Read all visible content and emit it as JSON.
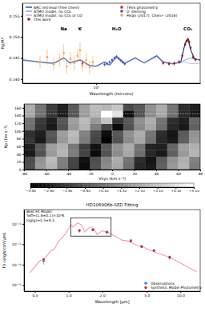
{
  "chart_data": [
    {
      "type": "line",
      "xlabel": "Wavelength (microns)",
      "ylabel": "Rp/R*",
      "log": "x",
      "xlim": [
        0.3,
        5.5
      ],
      "xticks": [
        {
          "value": 1,
          "label": "10⁰"
        }
      ],
      "ylim": [
        0.139,
        0.158
      ],
      "yticks": [
        {
          "value": 0.14,
          "label": "0.140"
        },
        {
          "value": 0.145,
          "label": "0.145"
        },
        {
          "value": 0.15,
          "label": "0.150"
        },
        {
          "value": 0.155,
          "label": "0.155"
        }
      ],
      "legend": "top",
      "annotations": [
        {
          "text": "Na",
          "x": 0.59,
          "y": 0.1515
        },
        {
          "text": "K",
          "x": 0.77,
          "y": 0.1515
        },
        {
          "text": "H₂O",
          "x": 1.4,
          "y": 0.1515
        },
        {
          "text": "CO₂",
          "x": 4.5,
          "y": 0.1515
        }
      ],
      "series": [
        {
          "name": "ARC retrieval (free chem)",
          "type": "line",
          "color": "#1a237e",
          "x": [
            0.3,
            0.4,
            0.5,
            0.59,
            0.65,
            0.77,
            0.9,
            1.0,
            1.15,
            1.25,
            1.4,
            1.6,
            1.9,
            2.2,
            2.7,
            3.0,
            3.5,
            4.0,
            4.3,
            4.5,
            4.7,
            5.0,
            5.5
          ],
          "values": [
            0.1445,
            0.144,
            0.1437,
            0.145,
            0.1438,
            0.1445,
            0.1432,
            0.143,
            0.144,
            0.1433,
            0.1452,
            0.1437,
            0.145,
            0.1438,
            0.1455,
            0.144,
            0.1436,
            0.144,
            0.1485,
            0.1495,
            0.147,
            0.1448,
            0.1445
          ]
        },
        {
          "name": "ATMO model, no CO₂",
          "type": "line",
          "color": "#5b9bd5",
          "x": [
            0.3,
            0.4,
            0.5,
            0.59,
            0.65,
            0.77,
            0.9,
            1.0,
            1.15,
            1.25,
            1.4,
            1.6,
            1.9,
            2.2,
            2.7,
            3.0,
            3.5,
            4.0,
            4.3,
            4.5,
            4.7,
            5.0,
            5.5
          ],
          "values": [
            0.1446,
            0.1441,
            0.1438,
            0.1451,
            0.1439,
            0.1446,
            0.1433,
            0.1431,
            0.1441,
            0.1434,
            0.1453,
            0.1438,
            0.1451,
            0.1439,
            0.1456,
            0.1441,
            0.1437,
            0.1441,
            0.1445,
            0.1448,
            0.145,
            0.1447,
            0.1444
          ]
        },
        {
          "name": "ATMO model, no CO₂ or CO",
          "type": "line",
          "color": "#b9a6d6",
          "x": [
            0.3,
            0.4,
            0.5,
            0.59,
            0.65,
            0.77,
            0.9,
            1.0,
            1.15,
            1.25,
            1.4,
            1.6,
            1.9,
            2.2,
            2.7,
            3.0,
            3.5,
            4.0,
            4.3,
            4.5,
            4.7,
            5.0,
            5.5
          ],
          "values": [
            0.1444,
            0.1439,
            0.1436,
            0.1449,
            0.1437,
            0.1444,
            0.1431,
            0.1429,
            0.1439,
            0.1432,
            0.1451,
            0.1436,
            0.1449,
            0.1437,
            0.1453,
            0.1439,
            0.1435,
            0.1439,
            0.144,
            0.1438,
            0.1437,
            0.1436,
            0.1438
          ]
        },
        {
          "name": "This work",
          "type": "scatter",
          "marker": "circle",
          "color": "#8b1a1a",
          "x": [
            3.0,
            3.3,
            3.6,
            3.9,
            4.1,
            4.3,
            4.4,
            4.5,
            4.6,
            4.7,
            4.9,
            5.1
          ],
          "values": [
            0.1438,
            0.1436,
            0.1437,
            0.1441,
            0.1455,
            0.1482,
            0.149,
            0.1494,
            0.1488,
            0.1474,
            0.1452,
            0.1446
          ],
          "errors": [
            0.0005,
            0.0005,
            0.0005,
            0.0005,
            0.0005,
            0.0005,
            0.0005,
            0.0005,
            0.0005,
            0.0005,
            0.0005,
            0.0005
          ]
        },
        {
          "name": "TESS photometry",
          "type": "scatter",
          "marker": "square",
          "color": "#d62728",
          "x": [
            0.8
          ],
          "values": [
            0.1437
          ],
          "errors": [
            0.0008
          ]
        },
        {
          "name": "D. Deming",
          "type": "scatter",
          "marker": "circle",
          "color": "#3f51b5",
          "x": [
            1.15,
            1.2,
            1.25,
            1.3,
            1.35,
            1.4,
            1.45,
            1.5,
            1.55,
            1.6
          ],
          "values": [
            0.1434,
            0.1436,
            0.144,
            0.1445,
            0.145,
            0.1453,
            0.1449,
            0.1444,
            0.144,
            0.1436
          ],
          "errors": [
            0.0004,
            0.0004,
            0.0004,
            0.0004,
            0.0004,
            0.0004,
            0.0004,
            0.0004,
            0.0004,
            0.0004
          ]
        },
        {
          "name": "Pelan (2017), Chen+ (2018)",
          "type": "scatter",
          "marker": "circle",
          "color": "#f5a34a",
          "x": [
            0.4,
            0.45,
            0.5,
            0.55,
            0.59,
            0.62,
            0.66,
            0.7,
            0.74,
            0.77,
            0.8,
            0.85,
            0.9,
            0.95
          ],
          "values": [
            0.144,
            0.1452,
            0.1435,
            0.1446,
            0.1462,
            0.143,
            0.1448,
            0.1438,
            0.1455,
            0.1468,
            0.1432,
            0.1445,
            0.1428,
            0.144
          ],
          "errors": [
            0.0015,
            0.0018,
            0.0014,
            0.0016,
            0.002,
            0.0017,
            0.0015,
            0.0018,
            0.0016,
            0.002,
            0.0015,
            0.0017,
            0.0016,
            0.0015
          ]
        }
      ]
    },
    {
      "type": "heatmap",
      "xlabel": "Vsys (km s⁻¹)",
      "ylabel": "Kp (km s⁻¹)",
      "xlim": [
        -80,
        80
      ],
      "xticks": [
        -80,
        -60,
        -40,
        -20,
        0,
        20,
        40,
        60,
        80
      ],
      "ylim": [
        0,
        170
      ],
      "yticks": [
        0,
        20,
        40,
        60,
        80,
        100,
        120,
        140,
        160
      ],
      "x_edges": [
        -80,
        -70,
        -60,
        -50,
        -40,
        -30,
        -20,
        -10,
        0,
        10,
        20,
        30,
        40,
        50,
        60,
        70,
        80
      ],
      "y_edges": [
        0,
        17,
        34,
        51,
        68,
        85,
        102,
        119,
        136,
        153,
        170
      ],
      "z": [
        [
          -1.0,
          1.5,
          2.5,
          0.5,
          -1.5,
          -3.5,
          -1.0,
          1.0,
          2.0,
          0.0,
          -2.5,
          -3.0,
          -0.5,
          1.5,
          2.5,
          0.5
        ],
        [
          -1.2,
          1.3,
          2.7,
          0.6,
          -1.4,
          -3.3,
          -1.2,
          0.8,
          2.2,
          0.2,
          -2.3,
          -3.2,
          -0.7,
          1.3,
          2.3,
          0.7
        ],
        [
          -3.0,
          -1.0,
          1.5,
          2.5,
          0.5,
          -1.5,
          -3.5,
          -1.0,
          1.0,
          2.0,
          0.0,
          -2.5,
          -3.0,
          -0.5,
          1.5,
          2.5
        ],
        [
          -2.8,
          -0.8,
          1.7,
          2.3,
          0.3,
          -1.7,
          -3.3,
          -0.8,
          1.2,
          2.2,
          0.2,
          -2.7,
          -2.8,
          -0.3,
          1.7,
          2.3
        ],
        [
          -2.0,
          -3.0,
          -1.0,
          1.5,
          2.5,
          0.5,
          -1.5,
          -3.9,
          -1.0,
          1.0,
          2.0,
          0.0,
          -2.5,
          -3.0,
          -0.5,
          1.5
        ],
        [
          -2.2,
          -2.8,
          -0.8,
          1.7,
          2.7,
          0.7,
          -1.3,
          -3.4,
          -0.8,
          1.2,
          2.2,
          0.2,
          -2.3,
          -3.2,
          -0.7,
          1.3
        ],
        [
          0.0,
          -2.0,
          -3.0,
          -1.0,
          1.5,
          2.5,
          0.5,
          -1.5,
          -3.5,
          -1.0,
          1.0,
          2.0,
          0.0,
          -2.5,
          -3.0,
          -0.5
        ],
        [
          0.2,
          -1.8,
          -2.8,
          -0.8,
          1.7,
          2.7,
          1.5,
          3.0,
          -2.0,
          -0.8,
          1.2,
          2.2,
          0.2,
          -2.3,
          -2.8,
          -0.3
        ],
        [
          2.0,
          0.0,
          -2.0,
          -3.0,
          -1.0,
          1.5,
          2.5,
          5.1,
          4.0,
          -3.5,
          -1.0,
          1.0,
          2.0,
          0.0,
          -2.5,
          -3.0
        ],
        [
          2.2,
          0.2,
          -1.8,
          -2.8,
          -0.8,
          1.7,
          2.7,
          2.5,
          3.0,
          -1.3,
          -0.8,
          1.2,
          2.2,
          0.2,
          -2.3,
          -2.8
        ]
      ],
      "zlim": [
        -3.9,
        5.1
      ],
      "zticks": [
        {
          "value": -3.9,
          "label": "−3.9σ"
        },
        {
          "value": -2.9,
          "label": "−2.9σ"
        },
        {
          "value": -1.9,
          "label": "−1.9σ"
        },
        {
          "value": -0.9,
          "label": "−0.9σ"
        },
        {
          "value": 0.1,
          "label": "+0.1σ"
        },
        {
          "value": 1.1,
          "label": "+1.1σ"
        },
        {
          "value": 2.1,
          "label": "+2.1σ"
        },
        {
          "value": 3.1,
          "label": "+3.1σ"
        },
        {
          "value": 4.1,
          "label": "+4.1σ"
        },
        {
          "value": 5.1,
          "label": "+5.1σ"
        }
      ],
      "crosshair": {
        "x": 0,
        "y": 145
      }
    },
    {
      "type": "scatter",
      "title": "HD106906b-SED Fitting",
      "xlabel": "Wavelength [μm]",
      "ylabel": "Fλ (erg/s/cm²/μm)",
      "log": true,
      "xlim": [
        0.4,
        15
      ],
      "xticks": [
        0.5,
        {
          "value": 1,
          "label": "1.0"
        },
        {
          "value": 2,
          "label": "2.0"
        },
        {
          "value": 5,
          "label": "5.0"
        },
        {
          "value": 10,
          "label": "10.0"
        }
      ],
      "ylim": [
        5e-16,
        5e-12
      ],
      "yticks": [
        {
          "value": 1e-15,
          "label": "10⁻¹⁵"
        },
        {
          "value": 1e-14,
          "label": "10⁻¹⁴"
        },
        {
          "value": 1e-13,
          "label": "10⁻¹³"
        },
        {
          "value": 1e-12,
          "label": "10⁻¹²"
        }
      ],
      "legend": "lower right",
      "annotation": {
        "x": 0.42,
        "y": 3.5e-12,
        "lines": [
          "Best Fit Model:",
          "Teff=(1.8±0.1)×10³K",
          "log(g)=5.5±0.5"
        ]
      },
      "highlight": {
        "x": [
          1.05,
          2.4
        ],
        "y": [
          2.5e-13,
          2e-12
        ]
      },
      "series": [
        {
          "type": "line",
          "color": "#f2a0b2",
          "x": [
            0.45,
            0.5,
            0.55,
            0.6,
            0.65,
            0.7,
            0.75,
            0.8,
            0.85,
            0.9,
            0.95,
            1.0,
            1.05,
            1.1,
            1.2,
            1.3,
            1.4,
            1.5,
            1.6,
            1.7,
            1.8,
            2.0,
            2.2,
            2.5,
            3.0,
            3.5,
            4.0,
            4.5,
            5.0,
            6.0,
            7.0,
            8.0,
            10.0,
            12.0,
            14.0
          ],
          "values": [
            4e-15,
            8e-15,
            1.5e-14,
            1.8e-14,
            3e-14,
            5e-14,
            6e-14,
            1.2e-13,
            1.8e-13,
            2.5e-13,
            3.5e-13,
            6e-13,
            9e-13,
            7e-13,
            1.1e-12,
            9e-13,
            4e-13,
            6e-13,
            7e-13,
            5.5e-13,
            3e-13,
            4.5e-13,
            4.2e-13,
            2.8e-13,
            1.6e-13,
            1.4e-13,
            9e-14,
            8e-14,
            6e-14,
            4e-14,
            3e-14,
            2.2e-14,
            1.2e-14,
            7e-15,
            4.5e-15
          ]
        },
        {
          "name": "Observations",
          "type": "scatter",
          "marker": "cross",
          "color": "#2a8fd6",
          "x": [
            0.6,
            1.25,
            1.65,
            2.2,
            3.6,
            4.5,
            5.8,
            8.0
          ],
          "values": [
            1.5e-14,
            4.5e-13,
            5.2e-13,
            4e-13,
            1.4e-13,
            8e-14,
            5e-14,
            2.2e-14
          ],
          "errors": [
            5e-15,
            5e-14,
            5e-14,
            4e-14,
            2e-14,
            1e-14,
            8e-15,
            5e-15
          ]
        },
        {
          "name": "Synthetic Model Photometry",
          "type": "scatter",
          "marker": "circle",
          "color": "#d62728",
          "x": [
            0.6,
            1.25,
            1.65,
            2.2,
            3.6,
            4.5,
            5.8,
            8.0
          ],
          "values": [
            1.8e-14,
            4.8e-13,
            5e-13,
            3.8e-13,
            1.5e-13,
            7.5e-14,
            4.8e-14,
            2.4e-14
          ]
        }
      ]
    }
  ]
}
